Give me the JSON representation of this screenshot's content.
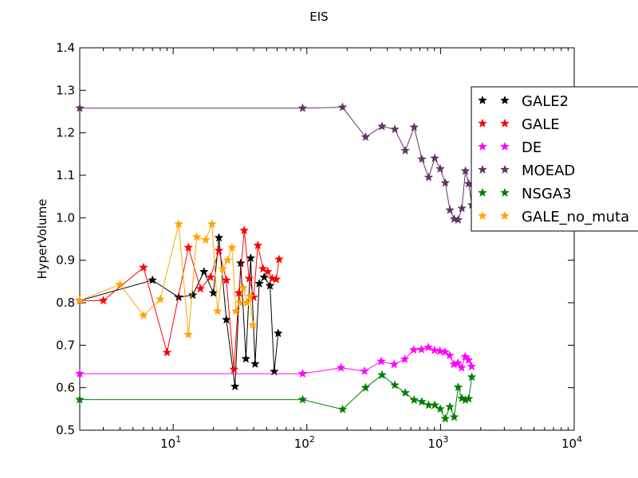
{
  "chart_data": {
    "type": "line",
    "title": "EIS",
    "xlabel": "",
    "ylabel": "HyperVolume",
    "x_scale": "log",
    "xlim": [
      2,
      10000
    ],
    "ylim": [
      0.5,
      1.4
    ],
    "x_ticks": [
      {
        "value": 10,
        "base": "10",
        "exp": "1"
      },
      {
        "value": 100,
        "base": "10",
        "exp": "2"
      },
      {
        "value": 1000,
        "base": "10",
        "exp": "3"
      },
      {
        "value": 10000,
        "base": "10",
        "exp": "4"
      }
    ],
    "y_ticks": [
      "0.5",
      "0.6",
      "0.7",
      "0.8",
      "0.9",
      "1.0",
      "1.1",
      "1.2",
      "1.3",
      "1.4"
    ],
    "grid": false,
    "legend_position": "right",
    "series": [
      {
        "name": "GALE2",
        "color": "#000000",
        "x": [
          2,
          7,
          11,
          14,
          17,
          20,
          22,
          25,
          29,
          32,
          35,
          38,
          41,
          44,
          48,
          53,
          57,
          61
        ],
        "y": [
          0.805,
          0.853,
          0.813,
          0.818,
          0.873,
          0.823,
          0.953,
          0.76,
          0.603,
          0.893,
          0.668,
          0.905,
          0.656,
          0.845,
          0.86,
          0.84,
          0.638,
          0.728
        ]
      },
      {
        "name": "GALE",
        "color": "#ff0000",
        "x": [
          2,
          3,
          6,
          9,
          13,
          16,
          19,
          22,
          25,
          28.5,
          31,
          34,
          37,
          40,
          43,
          47,
          51,
          55,
          59,
          62
        ],
        "y": [
          0.805,
          0.805,
          0.883,
          0.683,
          0.93,
          0.833,
          0.86,
          0.923,
          0.853,
          0.643,
          0.823,
          0.97,
          0.857,
          0.813,
          0.935,
          0.88,
          0.873,
          0.857,
          0.855,
          0.902
        ]
      },
      {
        "name": "DE",
        "color": "#ff00ff",
        "x": [
          2,
          93,
          180,
          270,
          360,
          450,
          540,
          630,
          720,
          810,
          900,
          990,
          1080,
          1170,
          1260,
          1350,
          1440,
          1530,
          1620,
          1710
        ],
        "y": [
          0.633,
          0.633,
          0.647,
          0.639,
          0.662,
          0.655,
          0.667,
          0.689,
          0.69,
          0.695,
          0.688,
          0.686,
          0.684,
          0.676,
          0.655,
          0.658,
          0.647,
          0.673,
          0.665,
          0.65
        ]
      },
      {
        "name": "MOEAD",
        "color": "#663366",
        "x": [
          2,
          93,
          185,
          275,
          365,
          455,
          545,
          635,
          725,
          815,
          905,
          995,
          1085,
          1175,
          1265,
          1355,
          1445,
          1535,
          1625,
          1715
        ],
        "y": [
          1.258,
          1.258,
          1.26,
          1.19,
          1.215,
          1.208,
          1.158,
          1.213,
          1.138,
          1.095,
          1.14,
          1.115,
          1.082,
          1.018,
          0.997,
          0.995,
          1.022,
          1.11,
          1.08,
          1.03
        ]
      },
      {
        "name": "NSGA3",
        "color": "#007f00",
        "x": [
          2,
          93,
          185,
          275,
          365,
          455,
          545,
          635,
          725,
          815,
          905,
          995,
          1085,
          1175,
          1265,
          1355,
          1445,
          1535,
          1625,
          1715
        ],
        "y": [
          0.572,
          0.572,
          0.549,
          0.6,
          0.63,
          0.606,
          0.588,
          0.571,
          0.567,
          0.559,
          0.559,
          0.55,
          0.527,
          0.555,
          0.531,
          0.601,
          0.575,
          0.571,
          0.574,
          0.625
        ]
      },
      {
        "name": "GALE_no_muta",
        "color": "#ffa500",
        "x": [
          2,
          4,
          6,
          8,
          11,
          13,
          15,
          17.5,
          19.5,
          21.5,
          23.5,
          25.5,
          27.5,
          29.5,
          31.5,
          33.5,
          35.5,
          37.5,
          39.5
        ],
        "y": [
          0.805,
          0.843,
          0.77,
          0.808,
          0.985,
          0.725,
          0.955,
          0.948,
          0.985,
          0.78,
          0.88,
          0.9,
          0.93,
          0.78,
          0.8,
          0.835,
          0.8,
          0.815,
          0.748
        ]
      }
    ]
  }
}
